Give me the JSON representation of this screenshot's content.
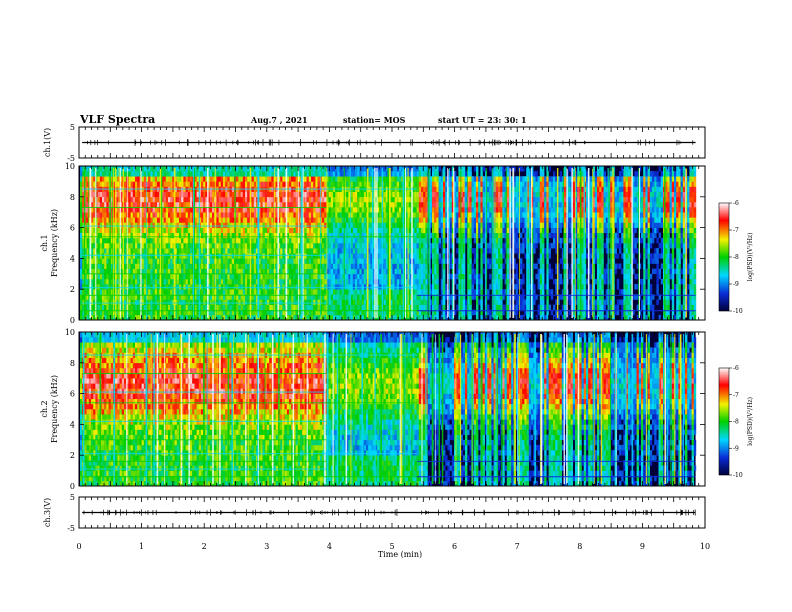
{
  "header": {
    "title": "VLF Spectra",
    "date": "Aug.7  , 2021",
    "station": "station= MOS",
    "start": "start  UT  =   23: 30: 1"
  },
  "chart_data": [
    {
      "type": "line",
      "panel": "waveform-top",
      "ylabel": "ch.1(V)",
      "ylim": [
        -5,
        5
      ],
      "y_ticks": [
        "5",
        "-5"
      ],
      "xlim": [
        0,
        10
      ],
      "baseline_value": 0
    },
    {
      "type": "heatmap",
      "panel": "spectrogram-ch1",
      "ylabel": "ch.1\nFrequency  (kHz)",
      "ylabel_lines": [
        "ch.1",
        "Frequency  (kHz)"
      ],
      "ylim": [
        0,
        10
      ],
      "y_ticks": [
        "0",
        "2",
        "4",
        "6",
        "8",
        "10"
      ],
      "xlim": [
        0,
        10
      ],
      "data_end_min": 9.85,
      "dense_interval_min": [
        0.05,
        3.95
      ],
      "transition_min": 5.4,
      "colorbar": {
        "label": "log(PSD)(V²/Hz)",
        "ticks": [
          "-6",
          "-7",
          "-8",
          "-9",
          "-10"
        ],
        "range": [
          -10,
          -6
        ]
      }
    },
    {
      "type": "heatmap",
      "panel": "spectrogram-ch2",
      "ylabel": "ch.2\nFrequency  (kHz)",
      "ylabel_lines": [
        "ch.2",
        "Frequency  (kHz)"
      ],
      "ylim": [
        0,
        10
      ],
      "y_ticks": [
        "0",
        "2",
        "4",
        "6",
        "8",
        "10"
      ],
      "xlim": [
        0,
        10
      ],
      "data_end_min": 9.85,
      "dense_interval_min": [
        0.05,
        3.95
      ],
      "transition_min": 5.4,
      "colorbar": {
        "label": "log(PSD)(V²/Hz)",
        "ticks": [
          "-6",
          "-7",
          "-8",
          "-9",
          "-10"
        ],
        "range": [
          -10,
          -6
        ]
      }
    },
    {
      "type": "line",
      "panel": "waveform-bottom",
      "ylabel": "ch.3(V)",
      "ylim": [
        -5,
        5
      ],
      "y_ticks": [
        "5",
        "-5"
      ],
      "xlim": [
        0,
        10
      ],
      "baseline_value": 0
    }
  ],
  "xaxis": {
    "label": "Time  (min)",
    "ticks": [
      "0",
      "1",
      "2",
      "3",
      "4",
      "5",
      "6",
      "7",
      "8",
      "9",
      "10"
    ]
  },
  "colors": {
    "colormap": [
      "#00003a",
      "#0a2bd6",
      "#00d7ff",
      "#00d000",
      "#f2f200",
      "#ff0000",
      "#ffffff"
    ],
    "line": "#000000"
  }
}
